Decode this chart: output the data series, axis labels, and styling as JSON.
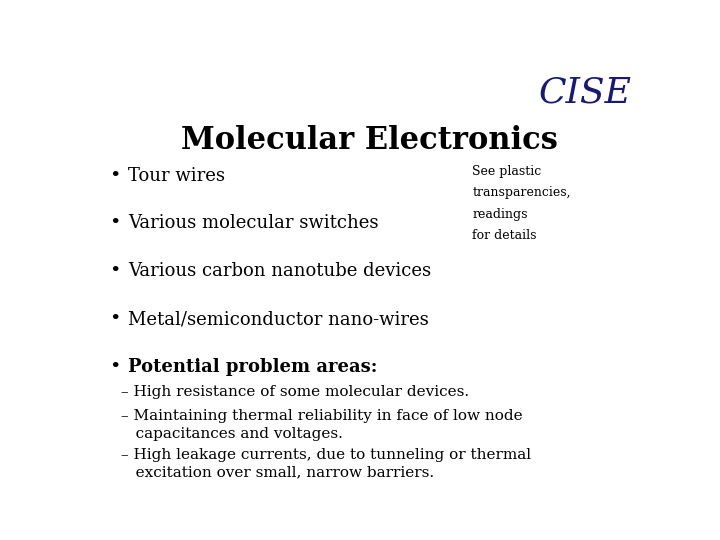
{
  "title": "Molecular Electronics",
  "title_fontsize": 22,
  "title_color": "#000000",
  "background_color": "#ffffff",
  "cise_text": "CISE",
  "cise_color": "#191970",
  "cise_fontsize": 26,
  "bullet_items": [
    "Tour wires",
    "Various molecular switches",
    "Various carbon nanotube devices",
    "Metal/semiconductor nano-wires",
    "Potential problem areas:"
  ],
  "bullet_fontsize": 13,
  "bullet_color": "#000000",
  "side_note_lines": [
    "See plastic",
    "transparencies,",
    "readings",
    "for details"
  ],
  "side_note_fontsize": 9,
  "side_note_color": "#000000",
  "sub_item1": "– High resistance of some molecular devices.",
  "sub_item2_line1": "– Maintaining thermal reliability in face of low node",
  "sub_item2_line2": "   capacitances and voltages.",
  "sub_item3_line1": "– High leakage currents, due to tunneling or thermal",
  "sub_item3_line2": "   excitation over small, narrow barriers.",
  "sub_fontsize": 11
}
